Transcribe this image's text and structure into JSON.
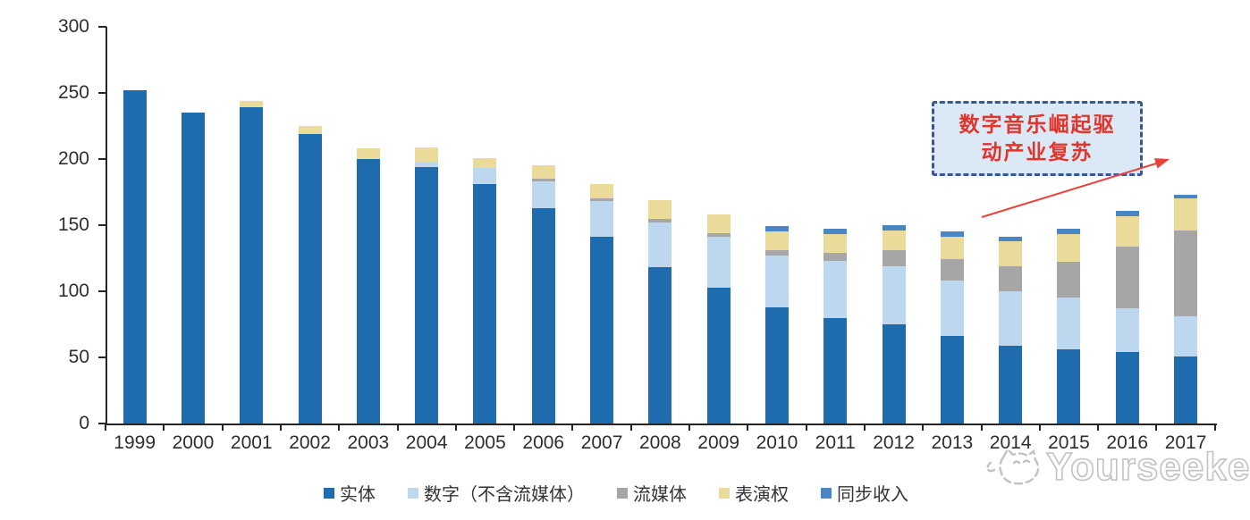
{
  "chart_data": {
    "type": "bar",
    "stacked": true,
    "categories": [
      "1999",
      "2000",
      "2001",
      "2002",
      "2003",
      "2004",
      "2005",
      "2006",
      "2007",
      "2008",
      "2009",
      "2010",
      "2011",
      "2012",
      "2013",
      "2014",
      "2015",
      "2016",
      "2017"
    ],
    "series": [
      {
        "name": "实体",
        "color": "#1E6CAD",
        "values": [
          252,
          235,
          239,
          219,
          200,
          194,
          181,
          163,
          141,
          118,
          103,
          88,
          80,
          75,
          66,
          59,
          56,
          54,
          51
        ]
      },
      {
        "name": "数字（不含流媒体）",
        "color": "#BDD7EE",
        "values": [
          0,
          0,
          0,
          0,
          0,
          4,
          12,
          20,
          27,
          34,
          38,
          39,
          43,
          44,
          42,
          41,
          39,
          33,
          30
        ]
      },
      {
        "name": "流媒体",
        "color": "#A6A6A6",
        "values": [
          0,
          0,
          0,
          0,
          0,
          0,
          0,
          2,
          2,
          3,
          3,
          4,
          6,
          12,
          16,
          19,
          27,
          47,
          65
        ]
      },
      {
        "name": "表演权",
        "color": "#EBDB9B",
        "values": [
          0,
          0,
          5,
          6,
          8,
          11,
          8,
          10,
          11,
          14,
          14,
          14,
          14,
          15,
          17,
          19,
          21,
          23,
          24
        ]
      },
      {
        "name": "同步收入",
        "color": "#4A86C6",
        "values": [
          0,
          0,
          0,
          0,
          0,
          0,
          0,
          0,
          0,
          0,
          0,
          4,
          4,
          4,
          4,
          3,
          4,
          4,
          3
        ]
      }
    ],
    "ylim": [
      0,
      300
    ],
    "y_ticks": [
      0,
      50,
      100,
      150,
      200,
      250,
      300
    ],
    "grid": false,
    "legend_position": "bottom"
  },
  "annotation": {
    "lines": [
      "数字音乐崛起驱",
      "动产业复苏"
    ],
    "full_text": "数字音乐崛起驱动产业复苏",
    "text_color": "#E0352B",
    "border_color": "#3A5696",
    "fill_color": "#DBE8F6",
    "arrow_color": "#E8433B"
  },
  "watermark": {
    "text": "Yourseeker"
  }
}
